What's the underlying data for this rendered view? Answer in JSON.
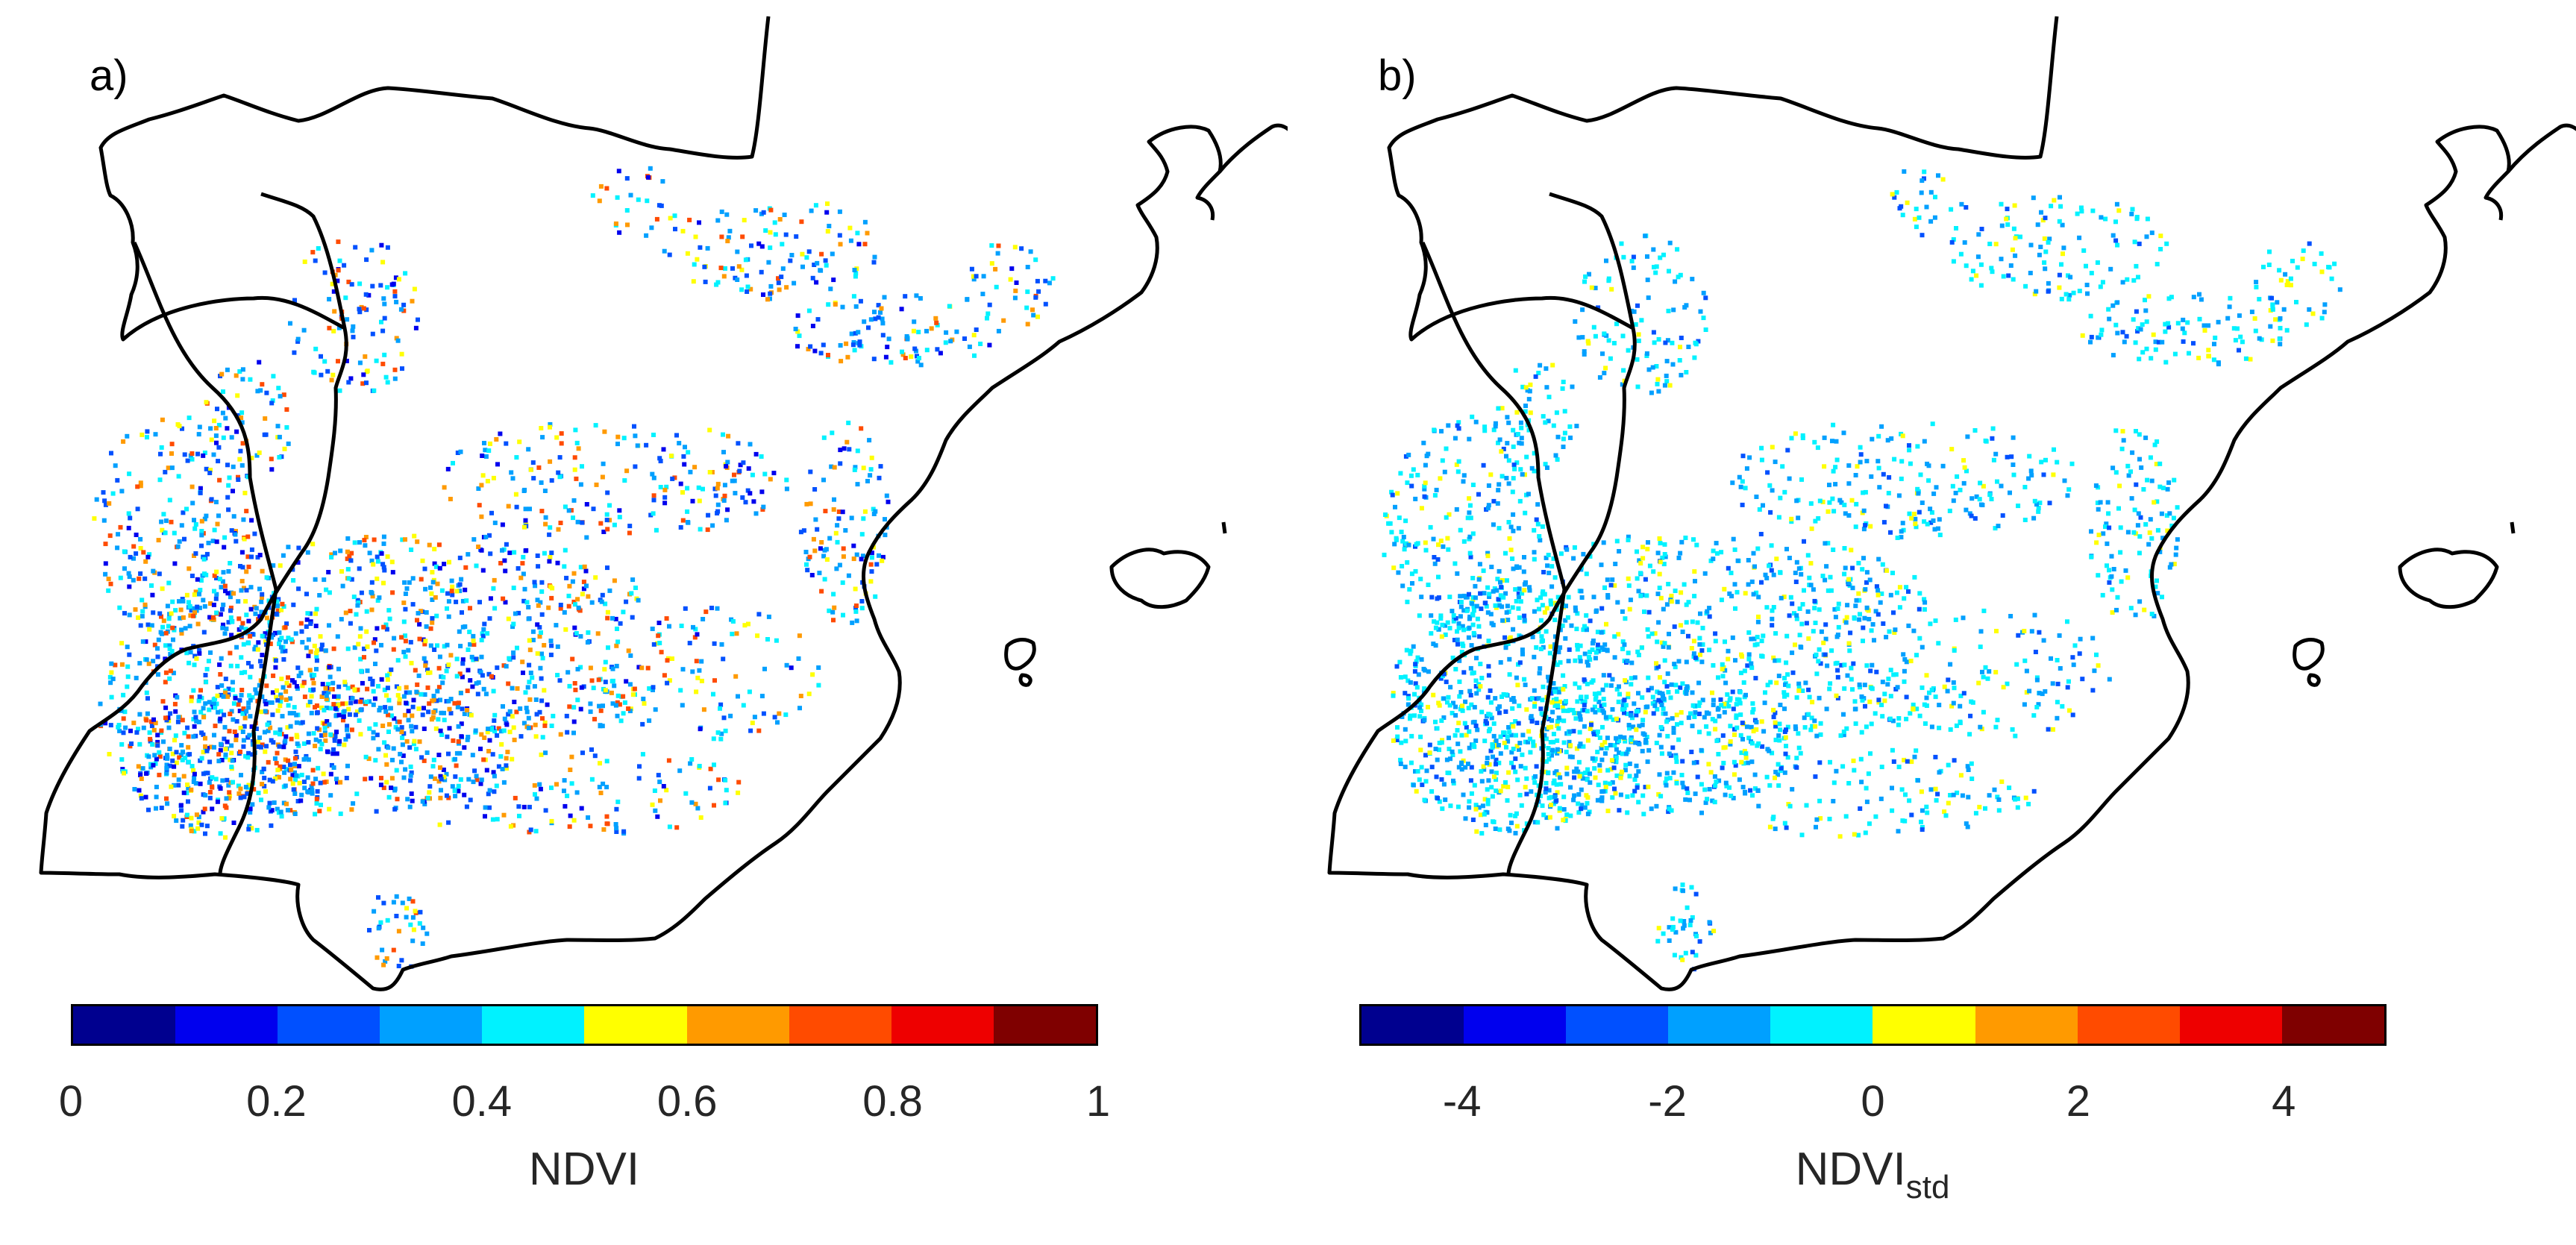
{
  "panels": [
    {
      "label": "a)",
      "colorbar_title": "NDVI",
      "colorbar_title_sub": "",
      "range": [
        0,
        1
      ],
      "ticks": [
        "0",
        "0.2",
        "0.4",
        "0.6",
        "0.8",
        "1"
      ],
      "tick_values": [
        0,
        0.2,
        0.4,
        0.6,
        0.8,
        1
      ]
    },
    {
      "label": "b)",
      "colorbar_title": "NDVI",
      "colorbar_title_sub": "std",
      "range": [
        -5,
        5
      ],
      "ticks": [
        "-4",
        "-2",
        "0",
        "2",
        "4"
      ],
      "tick_values": [
        -4,
        -2,
        0,
        2,
        4
      ]
    }
  ],
  "colormap": [
    "#00008f",
    "#0000ee",
    "#0050ff",
    "#00a0ff",
    "#00f2ff",
    "#ffff00",
    "#ff9a00",
    "#ff4b00",
    "#ee0000",
    "#7f0000"
  ],
  "coastline_color": "#000000",
  "region": "Iberian Peninsula"
}
